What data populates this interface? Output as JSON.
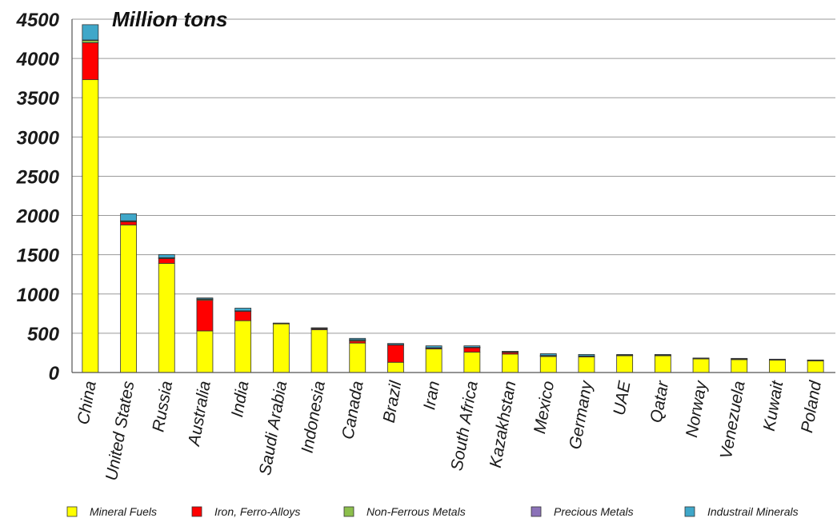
{
  "chart_data": {
    "type": "bar",
    "stacked": true,
    "unit_label": "Million tons",
    "ylim": [
      0,
      4500
    ],
    "yticks": [
      0,
      500,
      1000,
      1500,
      2000,
      2500,
      3000,
      3500,
      4000,
      4500
    ],
    "grid": true,
    "legend_position": "bottom",
    "categories": [
      "China",
      "United States",
      "Russia",
      "Australia",
      "India",
      "Saudi Arabia",
      "Indonesia",
      "Canada",
      "Brazil",
      "Iran",
      "South Africa",
      "Kazakhstan",
      "Mexico",
      "Germany",
      "UAE",
      "Qatar",
      "Norway",
      "Venezuela",
      "Kuwait",
      "Poland"
    ],
    "series": [
      {
        "name": "Mineral Fuels",
        "color": "#ffff00",
        "values": [
          3730,
          1880,
          1390,
          530,
          660,
          620,
          545,
          375,
          130,
          300,
          260,
          235,
          205,
          200,
          215,
          215,
          175,
          165,
          160,
          150
        ]
      },
      {
        "name": "Iron, Ferro-Alloys",
        "color": "#ff0000",
        "values": [
          470,
          40,
          60,
          390,
          120,
          0,
          10,
          25,
          220,
          10,
          55,
          20,
          5,
          5,
          0,
          0,
          0,
          5,
          0,
          0
        ]
      },
      {
        "name": "Non-Ferrous Metals",
        "color": "#8cbf4c",
        "values": [
          30,
          10,
          10,
          15,
          5,
          5,
          10,
          15,
          5,
          5,
          5,
          10,
          5,
          5,
          5,
          5,
          5,
          5,
          5,
          5
        ]
      },
      {
        "name": "Precious Metals",
        "color": "#8b72b8",
        "values": [
          5,
          2,
          2,
          2,
          1,
          1,
          1,
          2,
          1,
          1,
          2,
          1,
          2,
          1,
          1,
          1,
          1,
          1,
          1,
          1
        ]
      },
      {
        "name": "Industrail Minerals",
        "color": "#3fa7c9",
        "values": [
          195,
          90,
          40,
          13,
          34,
          4,
          4,
          18,
          14,
          24,
          18,
          4,
          23,
          19,
          9,
          9,
          4,
          4,
          4,
          4
        ]
      }
    ]
  }
}
